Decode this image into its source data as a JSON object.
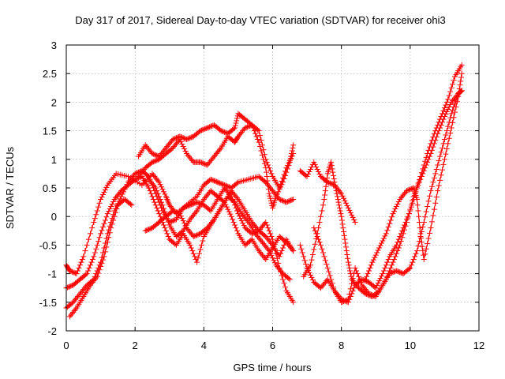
{
  "chart_data": {
    "type": "scatter",
    "title": "Day 317 of 2017, Sidereal Day-to-day VTEC variation (SDTVAR) for receiver ohi3",
    "xlabel": "GPS time / hours",
    "ylabel": "SDTVAR / TECUs",
    "xlim": [
      0,
      12
    ],
    "ylim": [
      -2,
      3
    ],
    "xticks": [
      0,
      2,
      4,
      6,
      8,
      10,
      12
    ],
    "yticks": [
      -2,
      -1.5,
      -1,
      -0.5,
      0,
      0.5,
      1,
      1.5,
      2,
      2.5,
      3
    ],
    "xtick_labels": [
      "0",
      "2",
      "4",
      "6",
      "8",
      "10",
      "12"
    ],
    "ytick_labels": [
      "-2",
      "-1.5",
      "-1",
      "-0.5",
      "0",
      "0.5",
      "1",
      "1.5",
      "2",
      "2.5",
      "3"
    ],
    "grid": true,
    "marker": "plus",
    "color": "#ff0000",
    "series": [
      {
        "points": [
          [
            0,
            -0.85
          ],
          [
            0.1,
            -0.95
          ],
          [
            0.3,
            -1.0
          ],
          [
            0.5,
            -0.7
          ],
          [
            0.8,
            -0.1
          ],
          [
            1.0,
            0.3
          ],
          [
            1.2,
            0.55
          ],
          [
            1.45,
            0.75
          ],
          [
            1.8,
            0.7
          ],
          [
            2.2,
            0.55
          ],
          [
            2.5,
            0.75
          ],
          [
            2.7,
            0.6
          ],
          [
            2.9,
            0.35
          ],
          [
            3.0,
            0.2
          ],
          [
            3.2,
            0.05
          ],
          [
            3.5,
            0.2
          ],
          [
            3.8,
            0.35
          ],
          [
            4.0,
            0.55
          ],
          [
            4.2,
            0.65
          ],
          [
            4.4,
            0.6
          ],
          [
            4.6,
            0.55
          ],
          [
            4.8,
            0.5
          ],
          [
            5.0,
            0.6
          ],
          [
            5.3,
            0.65
          ],
          [
            5.6,
            0.7
          ],
          [
            5.8,
            0.6
          ],
          [
            6.0,
            0.45
          ],
          [
            6.2,
            0.3
          ],
          [
            6.4,
            0.25
          ],
          [
            6.6,
            0.3
          ]
        ]
      },
      {
        "points": [
          [
            0,
            -1.6
          ],
          [
            0.2,
            -1.5
          ],
          [
            0.4,
            -1.35
          ],
          [
            0.6,
            -1.2
          ],
          [
            0.8,
            -1.1
          ],
          [
            1.0,
            -0.8
          ],
          [
            1.2,
            -0.3
          ],
          [
            1.4,
            0.1
          ],
          [
            1.6,
            0.35
          ],
          [
            1.8,
            0.6
          ],
          [
            2.0,
            0.75
          ],
          [
            2.2,
            0.8
          ],
          [
            2.4,
            0.7
          ],
          [
            2.6,
            0.4
          ],
          [
            2.8,
            0.1
          ],
          [
            3.0,
            -0.1
          ],
          [
            3.2,
            -0.05
          ],
          [
            3.4,
            0.15
          ],
          [
            3.6,
            0.2
          ],
          [
            3.8,
            0.25
          ],
          [
            4.0,
            0.2
          ],
          [
            4.2,
            0.1
          ],
          [
            4.4,
            0.3
          ],
          [
            4.6,
            0.5
          ],
          [
            4.8,
            0.35
          ],
          [
            5.0,
            0.05
          ],
          [
            5.2,
            -0.2
          ],
          [
            5.4,
            -0.3
          ],
          [
            5.6,
            -0.25
          ],
          [
            5.8,
            -0.35
          ],
          [
            6.0,
            -0.5
          ],
          [
            6.2,
            -0.7
          ],
          [
            6.4,
            -0.4
          ],
          [
            6.6,
            -0.6
          ]
        ]
      },
      {
        "points": [
          [
            0,
            -1.25
          ],
          [
            0.2,
            -1.2
          ],
          [
            0.4,
            -1.1
          ],
          [
            0.6,
            -1.0
          ],
          [
            0.8,
            -0.7
          ],
          [
            1.0,
            -0.3
          ],
          [
            1.2,
            0.05
          ],
          [
            1.4,
            0.3
          ],
          [
            1.6,
            0.45
          ],
          [
            1.8,
            0.55
          ],
          [
            2.0,
            0.65
          ],
          [
            2.2,
            0.7
          ],
          [
            2.4,
            0.5
          ],
          [
            2.6,
            0.2
          ],
          [
            2.8,
            -0.1
          ],
          [
            3.0,
            -0.4
          ],
          [
            3.2,
            -0.5
          ],
          [
            3.4,
            -0.3
          ],
          [
            3.6,
            -0.5
          ],
          [
            3.8,
            -0.8
          ],
          [
            4.0,
            -0.35
          ],
          [
            4.2,
            -0.15
          ],
          [
            4.4,
            0.05
          ],
          [
            4.6,
            0.25
          ],
          [
            4.8,
            0.45
          ],
          [
            5.0,
            0.3
          ],
          [
            5.2,
            0.1
          ],
          [
            5.4,
            -0.1
          ],
          [
            5.6,
            -0.25
          ],
          [
            5.8,
            -0.1
          ],
          [
            6.0,
            -0.4
          ],
          [
            6.2,
            -0.9
          ],
          [
            6.4,
            -1.3
          ],
          [
            6.6,
            -1.5
          ]
        ]
      },
      {
        "points": [
          [
            0.1,
            -1.75
          ],
          [
            0.3,
            -1.6
          ],
          [
            0.5,
            -1.4
          ],
          [
            0.7,
            -1.2
          ],
          [
            0.9,
            -1.05
          ],
          [
            1.1,
            -0.7
          ],
          [
            1.3,
            -0.2
          ],
          [
            1.5,
            0.2
          ],
          [
            1.7,
            0.3
          ],
          [
            1.9,
            0.2
          ]
        ]
      },
      {
        "points": [
          [
            2.1,
            1.05
          ],
          [
            2.3,
            1.25
          ],
          [
            2.5,
            1.1
          ],
          [
            2.7,
            1.05
          ],
          [
            2.9,
            1.2
          ],
          [
            3.1,
            1.35
          ],
          [
            3.3,
            1.4
          ],
          [
            3.5,
            1.35
          ],
          [
            3.7,
            1.4
          ],
          [
            3.9,
            1.5
          ],
          [
            4.1,
            1.55
          ],
          [
            4.3,
            1.6
          ],
          [
            4.5,
            1.5
          ],
          [
            4.7,
            1.45
          ],
          [
            4.9,
            1.55
          ],
          [
            5.0,
            1.8
          ],
          [
            5.2,
            1.7
          ],
          [
            5.4,
            1.6
          ],
          [
            5.6,
            1.3
          ],
          [
            5.8,
            0.85
          ],
          [
            5.9,
            0.4
          ],
          [
            6.0,
            0.15
          ],
          [
            6.1,
            0.35
          ],
          [
            6.3,
            0.6
          ],
          [
            6.5,
            0.95
          ],
          [
            6.6,
            1.25
          ]
        ]
      },
      {
        "points": [
          [
            2.1,
            0.7
          ],
          [
            2.3,
            0.85
          ],
          [
            2.5,
            0.95
          ],
          [
            2.7,
            1.0
          ],
          [
            2.9,
            1.1
          ],
          [
            3.1,
            1.2
          ],
          [
            3.3,
            1.35
          ],
          [
            3.5,
            1.1
          ],
          [
            3.7,
            0.95
          ],
          [
            3.9,
            0.95
          ],
          [
            4.1,
            0.9
          ],
          [
            4.3,
            1.05
          ],
          [
            4.5,
            1.2
          ],
          [
            4.7,
            1.4
          ],
          [
            4.9,
            1.3
          ],
          [
            5.0,
            1.4
          ],
          [
            5.2,
            1.55
          ],
          [
            5.4,
            1.6
          ],
          [
            5.6,
            1.5
          ],
          [
            5.8,
            1.0
          ],
          [
            6.0,
            0.7
          ],
          [
            6.2,
            0.5
          ],
          [
            6.4,
            0.85
          ],
          [
            6.6,
            1.1
          ]
        ]
      },
      {
        "points": [
          [
            2.4,
            0.65
          ],
          [
            2.6,
            0.5
          ],
          [
            2.8,
            0.2
          ],
          [
            3.0,
            -0.15
          ],
          [
            3.2,
            -0.35
          ],
          [
            3.4,
            -0.25
          ],
          [
            3.6,
            -0.05
          ],
          [
            3.8,
            0.1
          ],
          [
            4.0,
            0.3
          ],
          [
            4.2,
            0.45
          ],
          [
            4.4,
            0.35
          ],
          [
            4.6,
            0.25
          ],
          [
            4.8,
            0.0
          ],
          [
            5.0,
            -0.3
          ],
          [
            5.2,
            -0.5
          ],
          [
            5.4,
            -0.4
          ],
          [
            5.6,
            -0.6
          ],
          [
            5.8,
            -0.75
          ],
          [
            6.0,
            -0.55
          ],
          [
            6.2,
            -0.35
          ],
          [
            6.4,
            -0.45
          ],
          [
            6.6,
            -0.6
          ]
        ]
      },
      {
        "points": [
          [
            2.3,
            -0.25
          ],
          [
            2.5,
            -0.2
          ],
          [
            2.7,
            -0.1
          ],
          [
            2.9,
            0.0
          ],
          [
            3.1,
            0.1
          ],
          [
            3.3,
            0.05
          ],
          [
            3.5,
            -0.2
          ],
          [
            3.7,
            -0.35
          ],
          [
            3.9,
            -0.3
          ],
          [
            4.1,
            -0.2
          ],
          [
            4.3,
            -0.05
          ],
          [
            4.5,
            0.15
          ],
          [
            4.7,
            0.35
          ],
          [
            4.9,
            0.25
          ],
          [
            5.1,
            0.05
          ],
          [
            5.3,
            -0.1
          ],
          [
            5.5,
            -0.3
          ],
          [
            5.7,
            -0.45
          ],
          [
            5.9,
            -0.6
          ],
          [
            6.1,
            -0.85
          ],
          [
            6.3,
            -1.0
          ],
          [
            6.5,
            -1.1
          ]
        ]
      },
      {
        "points": [
          [
            6.8,
            0.8
          ],
          [
            7.0,
            0.7
          ],
          [
            7.2,
            0.95
          ],
          [
            7.4,
            0.7
          ],
          [
            7.6,
            0.6
          ],
          [
            7.8,
            0.55
          ],
          [
            8.0,
            0.4
          ],
          [
            8.2,
            0.15
          ],
          [
            8.4,
            -0.1
          ]
        ]
      },
      {
        "points": [
          [
            6.9,
            -1.05
          ],
          [
            7.1,
            -0.85
          ],
          [
            7.3,
            -0.3
          ],
          [
            7.5,
            0.3
          ],
          [
            7.6,
            0.75
          ],
          [
            7.7,
            0.95
          ],
          [
            7.8,
            0.6
          ],
          [
            7.9,
            0.3
          ],
          [
            8.0,
            0.0
          ],
          [
            8.1,
            -0.4
          ],
          [
            8.2,
            -0.8
          ],
          [
            8.3,
            -1.1
          ],
          [
            8.5,
            -1.25
          ],
          [
            8.7,
            -1.35
          ],
          [
            8.9,
            -1.4
          ],
          [
            9.1,
            -1.3
          ],
          [
            9.3,
            -1.1
          ],
          [
            9.5,
            -0.8
          ],
          [
            9.7,
            -0.5
          ],
          [
            9.9,
            -0.1
          ],
          [
            10.1,
            0.35
          ],
          [
            10.3,
            0.7
          ],
          [
            10.5,
            1.1
          ],
          [
            10.7,
            1.45
          ],
          [
            10.9,
            1.75
          ],
          [
            11.1,
            2.05
          ],
          [
            11.3,
            2.45
          ],
          [
            11.5,
            2.65
          ]
        ]
      },
      {
        "points": [
          [
            6.8,
            -0.5
          ],
          [
            7.0,
            -0.9
          ],
          [
            7.2,
            -1.15
          ],
          [
            7.4,
            -1.25
          ],
          [
            7.6,
            -1.1
          ],
          [
            7.8,
            -1.3
          ],
          [
            8.0,
            -1.45
          ],
          [
            8.2,
            -1.5
          ],
          [
            8.4,
            -1.2
          ],
          [
            8.6,
            -1.1
          ],
          [
            8.8,
            -1.15
          ],
          [
            9.0,
            -1.25
          ],
          [
            9.2,
            -1.0
          ],
          [
            9.4,
            -0.7
          ],
          [
            9.6,
            -0.5
          ],
          [
            9.8,
            -0.2
          ],
          [
            10.0,
            0.1
          ],
          [
            10.2,
            0.5
          ],
          [
            10.4,
            0.8
          ],
          [
            10.6,
            1.1
          ],
          [
            10.8,
            1.45
          ],
          [
            11.0,
            1.75
          ],
          [
            11.2,
            2.0
          ],
          [
            11.4,
            2.15
          ],
          [
            11.5,
            2.2
          ]
        ]
      },
      {
        "points": [
          [
            7.2,
            -0.2
          ],
          [
            7.4,
            -0.5
          ],
          [
            7.6,
            -0.9
          ],
          [
            7.8,
            -1.3
          ],
          [
            8.0,
            -1.5
          ],
          [
            8.2,
            -1.45
          ],
          [
            8.4,
            -0.9
          ],
          [
            8.6,
            -1.2
          ],
          [
            8.8,
            -1.35
          ],
          [
            9.0,
            -1.4
          ],
          [
            9.2,
            -1.2
          ],
          [
            9.4,
            -1.0
          ],
          [
            9.6,
            -0.95
          ],
          [
            9.8,
            -1.0
          ],
          [
            10.0,
            -0.9
          ],
          [
            10.2,
            -0.6
          ],
          [
            10.4,
            -0.1
          ],
          [
            10.6,
            0.45
          ],
          [
            10.8,
            0.9
          ],
          [
            11.0,
            1.35
          ],
          [
            11.2,
            1.8
          ],
          [
            11.4,
            2.15
          ],
          [
            11.5,
            2.2
          ]
        ]
      },
      {
        "points": [
          [
            8.7,
            -1.1
          ],
          [
            8.9,
            -0.8
          ],
          [
            9.1,
            -0.55
          ],
          [
            9.3,
            -0.3
          ],
          [
            9.5,
            0.05
          ],
          [
            9.7,
            0.3
          ],
          [
            9.9,
            0.45
          ],
          [
            10.1,
            0.5
          ],
          [
            10.2,
            0.3
          ],
          [
            10.3,
            -0.3
          ],
          [
            10.4,
            -0.75
          ],
          [
            10.6,
            -0.2
          ],
          [
            10.8,
            0.45
          ],
          [
            11.0,
            1.0
          ],
          [
            11.2,
            1.55
          ],
          [
            11.4,
            2.1
          ],
          [
            11.5,
            2.5
          ]
        ]
      }
    ]
  }
}
